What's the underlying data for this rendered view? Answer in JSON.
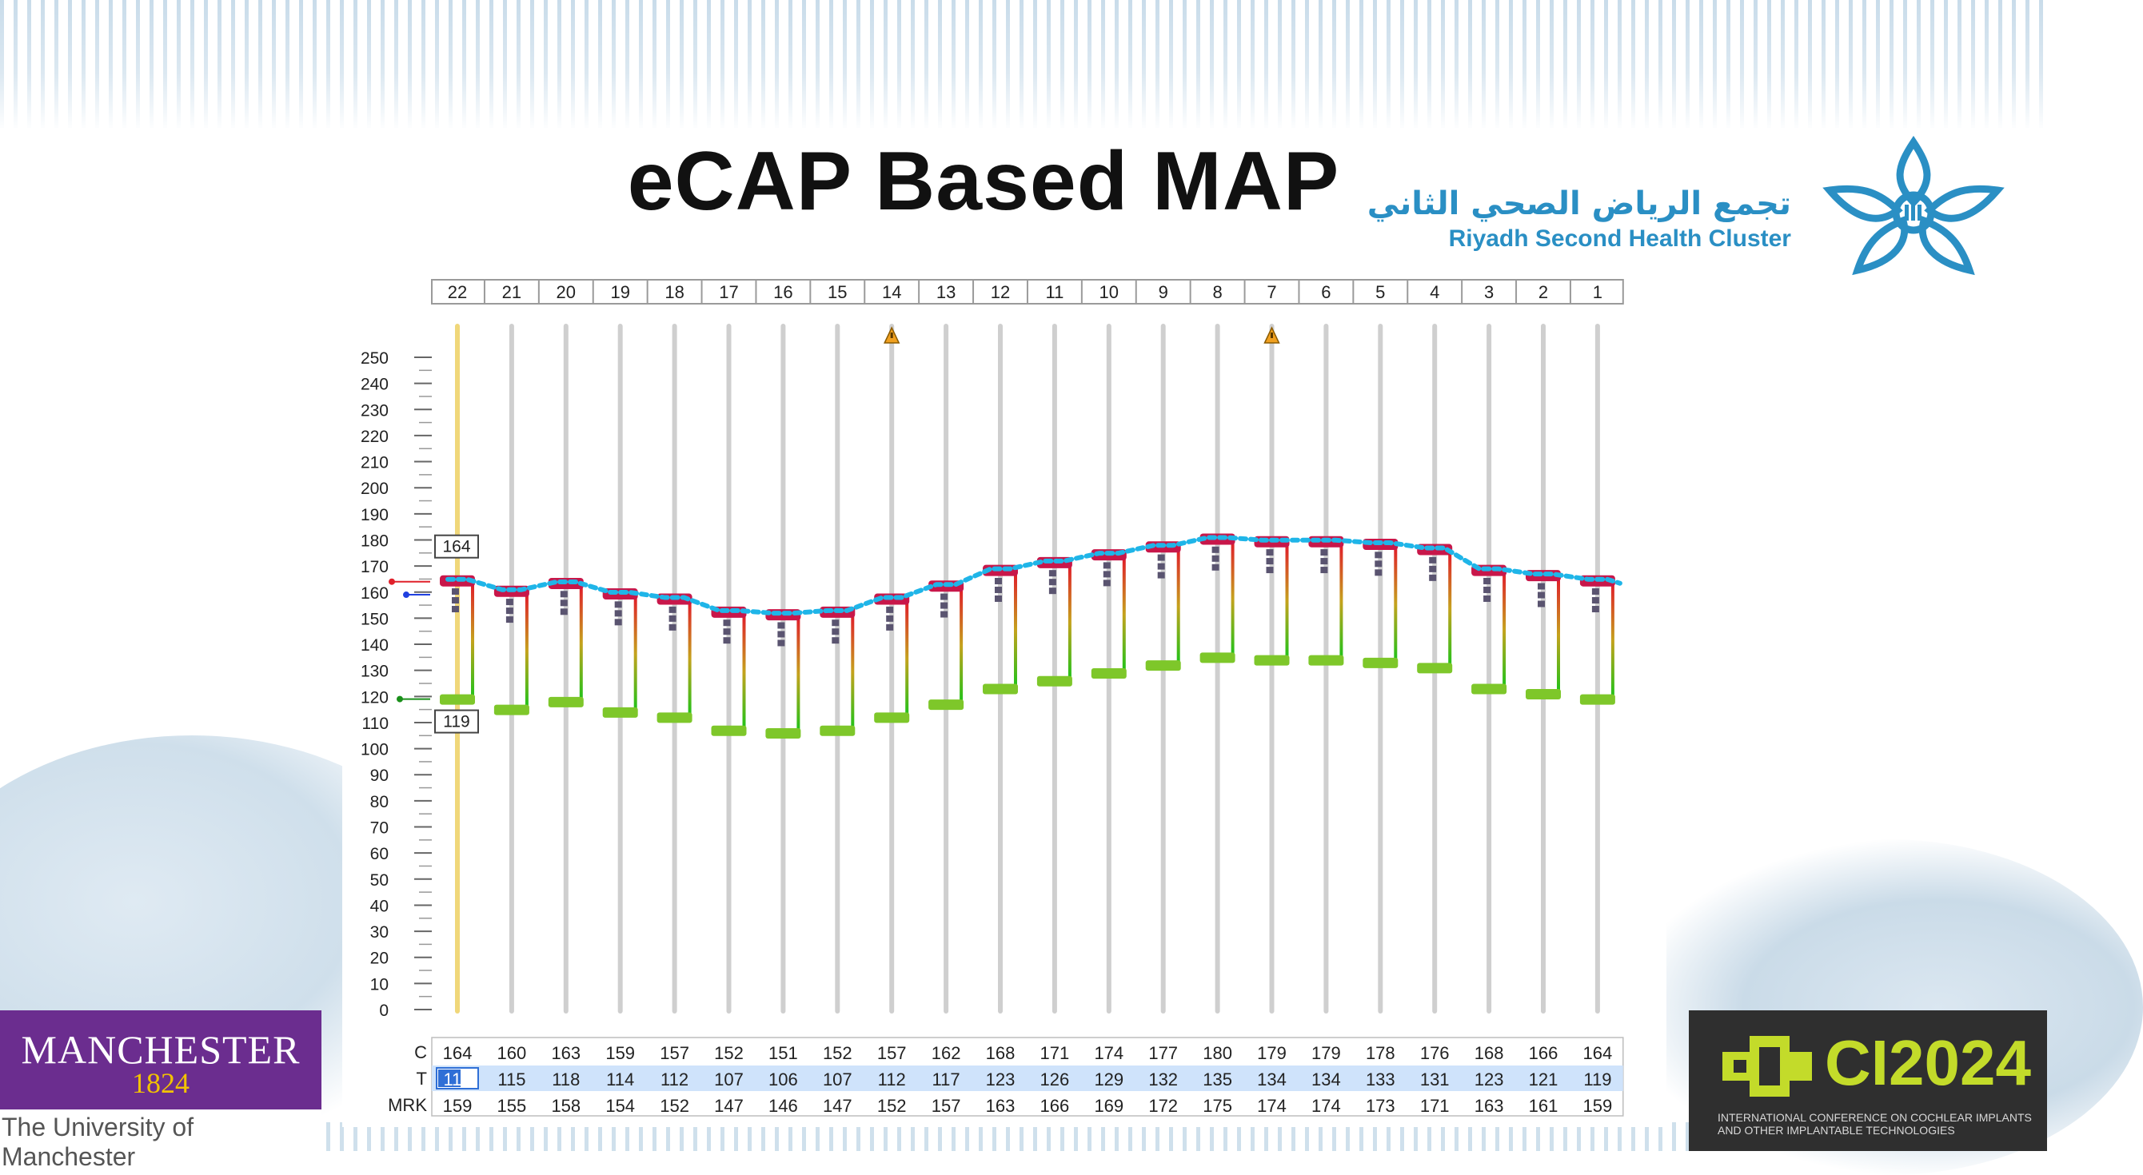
{
  "slide": {
    "title": "eCAP Based MAP"
  },
  "logo": {
    "arabic": "تجمع الرياض الصحي الثاني",
    "english": "Riyadh Second Health Cluster",
    "icon": "star-flower-logo-icon",
    "color": "#2a8fc4"
  },
  "chart_data": {
    "type": "line",
    "electrodes": [
      "22",
      "21",
      "20",
      "19",
      "18",
      "17",
      "16",
      "15",
      "14",
      "13",
      "12",
      "11",
      "10",
      "9",
      "8",
      "7",
      "6",
      "5",
      "4",
      "3",
      "2",
      "1"
    ],
    "y_ticks": [
      "250",
      "240",
      "230",
      "220",
      "210",
      "200",
      "190",
      "180",
      "170",
      "160",
      "150",
      "140",
      "130",
      "120",
      "110",
      "100",
      "90",
      "80",
      "70",
      "60",
      "50",
      "40",
      "30",
      "20",
      "10",
      "0"
    ],
    "ylim": [
      0,
      250
    ],
    "series": [
      {
        "name": "C",
        "values": [
          164,
          160,
          163,
          159,
          157,
          152,
          151,
          152,
          157,
          162,
          168,
          171,
          174,
          177,
          180,
          179,
          179,
          178,
          176,
          168,
          166,
          164
        ]
      },
      {
        "name": "T",
        "values": [
          119,
          115,
          118,
          114,
          112,
          107,
          106,
          107,
          112,
          117,
          123,
          126,
          129,
          132,
          135,
          134,
          134,
          133,
          131,
          123,
          121,
          119
        ]
      },
      {
        "name": "MRK",
        "values": [
          159,
          155,
          158,
          154,
          152,
          147,
          146,
          147,
          152,
          157,
          163,
          166,
          169,
          172,
          175,
          174,
          174,
          173,
          171,
          163,
          161,
          159
        ]
      }
    ],
    "row_labels": {
      "c": "C",
      "t": "T",
      "mrk": "MRK"
    },
    "selected_electrode": "22",
    "selected_c_label": "164",
    "selected_t_label": "119",
    "warning_electrodes": [
      "14",
      "7"
    ],
    "colors": {
      "c_line": "#1fb5e8",
      "c_marker": "#c8174a",
      "t_marker": "#7ec72a",
      "selected_track": "#f0d77a",
      "track": "#cfcfcf",
      "t_row_bg": "#cfe3fb",
      "t_cell_selected": "#2f6fd6"
    }
  },
  "institutions": {
    "manchester_name": "MANCHESTER",
    "manchester_year": "1824",
    "manchester_sub": "The University of Manchester",
    "ci_name": "CI2024",
    "ci_sub": "INTERNATIONAL CONFERENCE ON COCHLEAR IMPLANTS AND OTHER IMPLANTABLE TECHNOLOGIES"
  }
}
